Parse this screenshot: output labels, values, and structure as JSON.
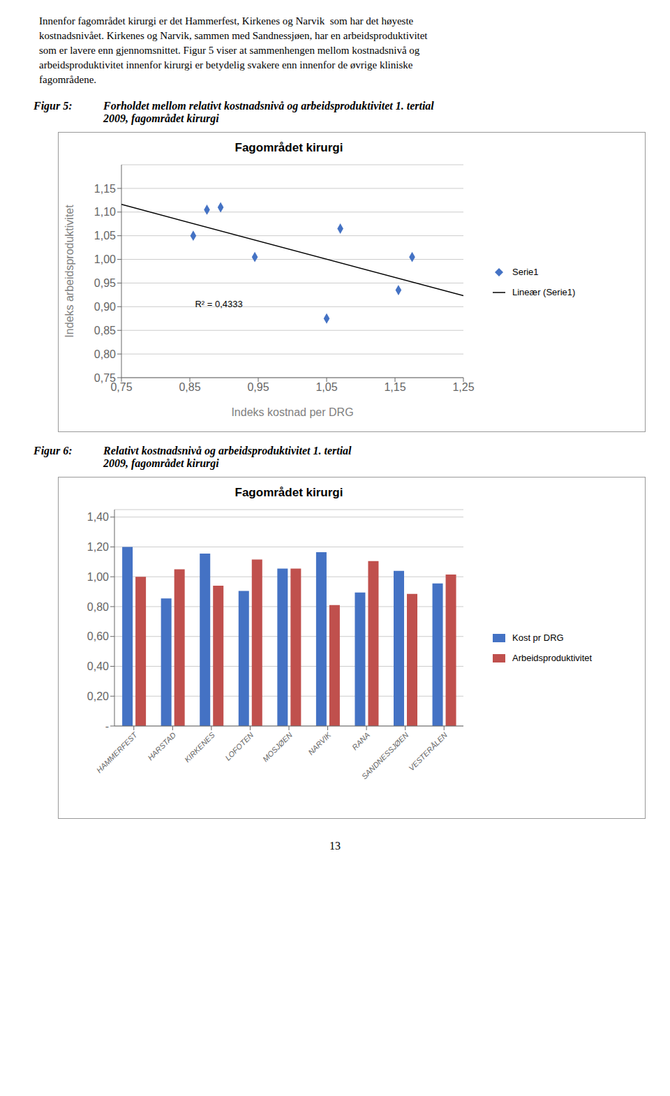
{
  "text": [
    "Innenfor fagområdet kirurgi er det Hammerfest, Kirkenes og Narvik  som har det høyeste",
    "kostnadsnivået. Kirkenes og Narvik, sammen med Sandnessjøen, har en arbeidsproduktivitet",
    "som er lavere enn gjennomsnittet. Figur 5 viser at sammenhengen mellom kostnadsnivå og",
    "arbeidsproduktivitet innenfor kirurgi er betydelig svakere enn innenfor de øvrige kliniske",
    "fagområdene."
  ],
  "page_number": "13",
  "chart_data": [
    {
      "type": "scatter",
      "caption_label": "Figur 5:",
      "subtitle": [
        "Forholdet mellom relativt kostnadsnivå og arbeidsproduktivitet 1. tertial",
        "2009, fagområdet kirurgi"
      ],
      "title": "Fagområdet kirurgi",
      "x_label": "Indeks kostnad per DRG",
      "y_label": "Indeks arbeidsproduktivitet",
      "series": [
        {
          "name": "Serie1",
          "type": "scatter",
          "marker": "diamond",
          "color": "#4472C4",
          "x": [
            0.855,
            0.875,
            0.895,
            0.945,
            1.05,
            1.07,
            1.155,
            1.175
          ],
          "values": [
            1.05,
            1.105,
            1.11,
            1.005,
            0.875,
            1.065,
            0.935,
            1.005
          ]
        },
        {
          "name": "Lineær (Serie1)",
          "type": "line",
          "color": "#000000",
          "x": [
            0.75,
            1.25
          ],
          "values": [
            1.116154,
            0.923275
          ]
        }
      ],
      "xlim": [
        0.75,
        1.25
      ],
      "ylim": [
        0.75,
        1.2
      ],
      "xticks": [
        {
          "value": 0.75,
          "label": "0,75"
        },
        {
          "value": 0.85,
          "label": "0,85"
        },
        {
          "value": 0.95,
          "label": "0,95"
        },
        {
          "value": 1.05,
          "label": "1,05"
        },
        {
          "value": 1.15,
          "label": "1,15"
        },
        {
          "value": 1.25,
          "label": "1,25"
        }
      ],
      "yticks": [
        {
          "value": 0.75,
          "label": "0,75"
        },
        {
          "value": 0.8,
          "label": "0,80"
        },
        {
          "value": 0.85,
          "label": "0,85"
        },
        {
          "value": 0.9,
          "label": "0,90"
        },
        {
          "value": 0.95,
          "label": "0,95"
        },
        {
          "value": 1.0,
          "label": "1,00"
        },
        {
          "value": 1.05,
          "label": "1,05"
        },
        {
          "value": 1.1,
          "label": "1,10"
        },
        {
          "value": 1.15,
          "label": "1,15"
        }
      ],
      "grid": "y",
      "legend": "right",
      "annotations": [
        "R² = 0,4333"
      ]
    },
    {
      "type": "bar",
      "caption_label": "Figur 6:",
      "subtitle": [
        "Relativt kostnadsnivå og arbeidsproduktivitet 1. tertial",
        "2009, fagområdet kirurgi"
      ],
      "title": "Fagområdet kirurgi",
      "categories": [
        "HAMMERFEST",
        "HARSTAD",
        "KIRKENES",
        "LOFOTEN",
        "MOSJØEN",
        "NARVIK",
        "RANA",
        "SANDNESSJØEN",
        "VESTERÅLEN"
      ],
      "series": [
        {
          "name": "Kost pr DRG",
          "color": "#4472C4",
          "values": [
            1.2,
            0.855,
            1.155,
            0.905,
            1.055,
            1.165,
            0.895,
            1.04,
            0.955
          ]
        },
        {
          "name": "Arbeidsproduktivitet",
          "color": "#C0504D",
          "values": [
            1.0,
            1.05,
            0.94,
            1.115,
            1.055,
            0.81,
            1.105,
            0.885,
            1.015
          ]
        }
      ],
      "ylim": [
        0,
        1.45
      ],
      "yticks": [
        {
          "value": 0,
          "label": "-"
        },
        {
          "value": 0.2,
          "label": "0,20"
        },
        {
          "value": 0.4,
          "label": "0,40"
        },
        {
          "value": 0.6,
          "label": "0,60"
        },
        {
          "value": 0.8,
          "label": "0,80"
        },
        {
          "value": 1.0,
          "label": "1,00"
        },
        {
          "value": 1.2,
          "label": "1,20"
        },
        {
          "value": 1.4,
          "label": "1,40"
        }
      ],
      "grid": "y",
      "legend": "right"
    }
  ]
}
